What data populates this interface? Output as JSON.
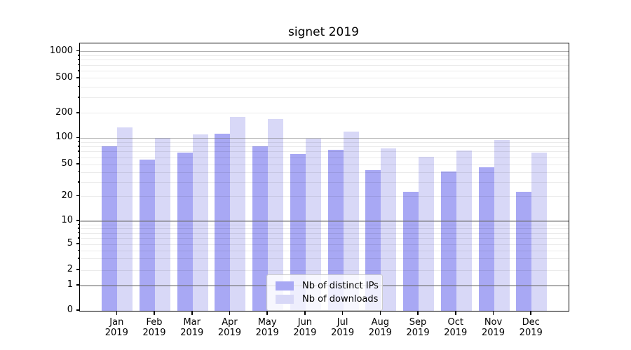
{
  "title": "signet 2019",
  "chart_data": {
    "type": "bar",
    "title": "signet 2019",
    "yscale": "symlog",
    "grid": true,
    "legend_position": "lower center",
    "ylim": [
      0,
      1300
    ],
    "y_tick_labels": [
      "0",
      "1",
      "2",
      "5",
      "10",
      "20",
      "50",
      "100",
      "200",
      "500",
      "1000"
    ],
    "y_ticks": [
      0,
      1,
      2,
      5,
      10,
      20,
      50,
      100,
      200,
      500,
      1000
    ],
    "x_year_label": "2019",
    "categories": [
      "Jan",
      "Feb",
      "Mar",
      "Apr",
      "May",
      "Jun",
      "Jul",
      "Aug",
      "Sep",
      "Oct",
      "Nov",
      "Dec"
    ],
    "series": [
      {
        "name": "Nb of distinct IPs",
        "color": "#a8a8f4",
        "values": [
          80,
          57,
          69,
          114,
          80,
          66,
          74,
          43,
          23,
          41,
          46,
          23
        ]
      },
      {
        "name": "Nb of downloads",
        "color": "#d8d8f7",
        "values": [
          136,
          100,
          110,
          182,
          170,
          99,
          119,
          77,
          61,
          72,
          96,
          68
        ]
      }
    ]
  }
}
